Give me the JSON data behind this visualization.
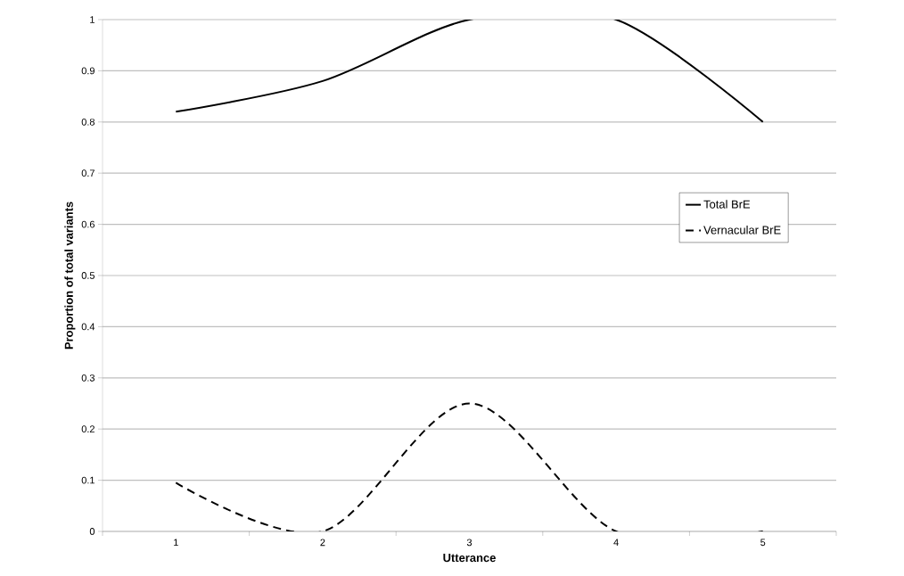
{
  "chart_data": {
    "type": "line",
    "xlabel": "Utterance",
    "ylabel": "Proportion of total variants",
    "categories": [
      "1",
      "2",
      "3",
      "4",
      "5"
    ],
    "series": [
      {
        "name": "Total BrE",
        "color": "#000000",
        "line_style": "solid",
        "values": [
          0.82,
          0.88,
          1,
          1,
          0.8
        ]
      },
      {
        "name": "Vernacular BrE",
        "color": "#000000",
        "line_style": "dashed",
        "values": [
          0.095,
          0,
          0.25,
          0,
          0
        ]
      }
    ],
    "ylim": [
      0,
      1
    ],
    "yticks": [
      0,
      0.1,
      0.2,
      0.3,
      0.4,
      0.5,
      0.6,
      0.7,
      0.8,
      0.9,
      1
    ],
    "grid": "y",
    "legend": "right",
    "marker": "none"
  }
}
